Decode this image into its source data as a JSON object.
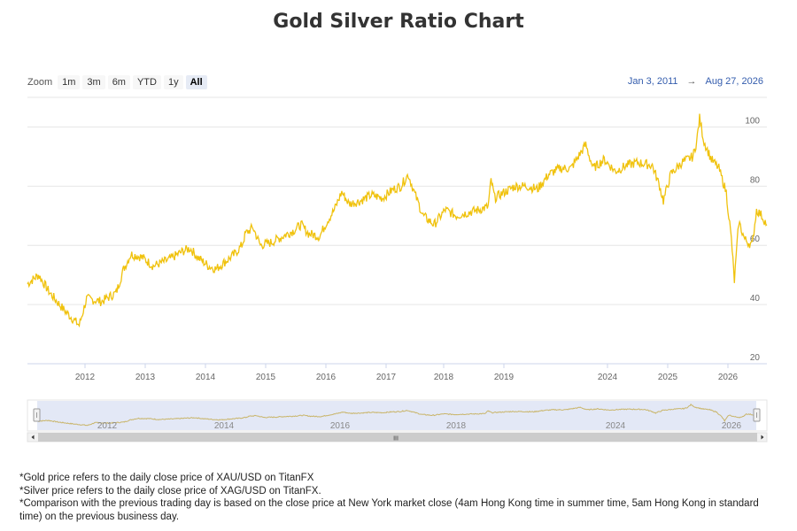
{
  "page": {
    "title": "Gold Silver Ratio Chart"
  },
  "zoom": {
    "label": "Zoom",
    "buttons": [
      "1m",
      "3m",
      "6m",
      "YTD",
      "1y",
      "All"
    ],
    "active": "All"
  },
  "range": {
    "from": "Jan 3, 2011",
    "arrow": "→",
    "to": "Aug 27, 2026"
  },
  "colors": {
    "line": "#f0c20d",
    "grid": "#e6e6e6",
    "navigator_mask": "#d9e0f3",
    "navigator_line": "#c9b56a"
  },
  "navigator": {
    "labels": [
      "2012",
      "2014",
      "2016",
      "2018",
      "2024",
      "2026"
    ],
    "scrollbar_grip": "III"
  },
  "footnotes": [
    "*Gold price refers to the daily close price of XAU/USD on TitanFX",
    "*Silver price refers to the daily close price of XAG/USD on TitanFX.",
    "*Comparison with the previous trading day is based on the close price at New York market close (4am Hong Kong time in summer time, 5am Hong Kong in standard time) on the previous business day."
  ],
  "chart_data": {
    "type": "line",
    "title": "Gold Silver Ratio Chart",
    "ylim": [
      20,
      110
    ],
    "yticks": [
      20,
      40,
      60,
      80,
      100
    ],
    "grid": true,
    "x_tick_labels": [
      "2012",
      "2013",
      "2014",
      "2015",
      "2016",
      "2017",
      "2018",
      "2019",
      "2024",
      "2025",
      "2026"
    ],
    "series": [
      {
        "values": [
          [
            0,
            47
          ],
          [
            1.5,
            50
          ],
          [
            3,
            44
          ],
          [
            5,
            38
          ],
          [
            7,
            33
          ],
          [
            8,
            42
          ],
          [
            10,
            41
          ],
          [
            12,
            44
          ],
          [
            13,
            52
          ],
          [
            14,
            57
          ],
          [
            15.5,
            56
          ],
          [
            17,
            53
          ],
          [
            19,
            55
          ],
          [
            21,
            58
          ],
          [
            22,
            59
          ],
          [
            23,
            56
          ],
          [
            24.5,
            53
          ],
          [
            25.5,
            52
          ],
          [
            27,
            55
          ],
          [
            28,
            57
          ],
          [
            29,
            60
          ],
          [
            29.5,
            64
          ],
          [
            30.5,
            66
          ],
          [
            31.5,
            60
          ],
          [
            33,
            61
          ],
          [
            34.5,
            63
          ],
          [
            36,
            65
          ],
          [
            37,
            67
          ],
          [
            38,
            64
          ],
          [
            39.5,
            63
          ],
          [
            40.5,
            68
          ],
          [
            41.5,
            72
          ],
          [
            42.5,
            78
          ],
          [
            43.5,
            74
          ],
          [
            45,
            75
          ],
          [
            46.5,
            77
          ],
          [
            48,
            76
          ],
          [
            49.5,
            79
          ],
          [
            50.5,
            80
          ],
          [
            51.5,
            84
          ],
          [
            52.3,
            78
          ],
          [
            53.5,
            70
          ],
          [
            55,
            67
          ],
          [
            56.5,
            72
          ],
          [
            58,
            70
          ],
          [
            59.5,
            71
          ],
          [
            61,
            72
          ],
          [
            62.3,
            73
          ],
          [
            62.7,
            82
          ],
          [
            63.2,
            76
          ],
          [
            64.5,
            78
          ],
          [
            66,
            80
          ],
          [
            67.5,
            80
          ],
          [
            69,
            79
          ],
          [
            70.5,
            84
          ],
          [
            72,
            86
          ],
          [
            73.5,
            86
          ],
          [
            74.5,
            90
          ],
          [
            75.5,
            94
          ],
          [
            76.5,
            86
          ],
          [
            78,
            89
          ],
          [
            79.5,
            85
          ],
          [
            81,
            87
          ],
          [
            82.5,
            88
          ],
          [
            84.5,
            87
          ],
          [
            85.5,
            80
          ],
          [
            86,
            75
          ],
          [
            87,
            84
          ],
          [
            88.5,
            88
          ],
          [
            90,
            90
          ],
          [
            90.5,
            95
          ],
          [
            90.9,
            103
          ],
          [
            91.5,
            95
          ],
          [
            92.5,
            89
          ],
          [
            93.5,
            86
          ],
          [
            94.5,
            78
          ],
          [
            95.2,
            62
          ],
          [
            95.6,
            48
          ],
          [
            96.2,
            68
          ],
          [
            97,
            62
          ],
          [
            98,
            60
          ],
          [
            98.6,
            72
          ],
          [
            99.3,
            70
          ],
          [
            100,
            67
          ]
        ]
      }
    ]
  }
}
